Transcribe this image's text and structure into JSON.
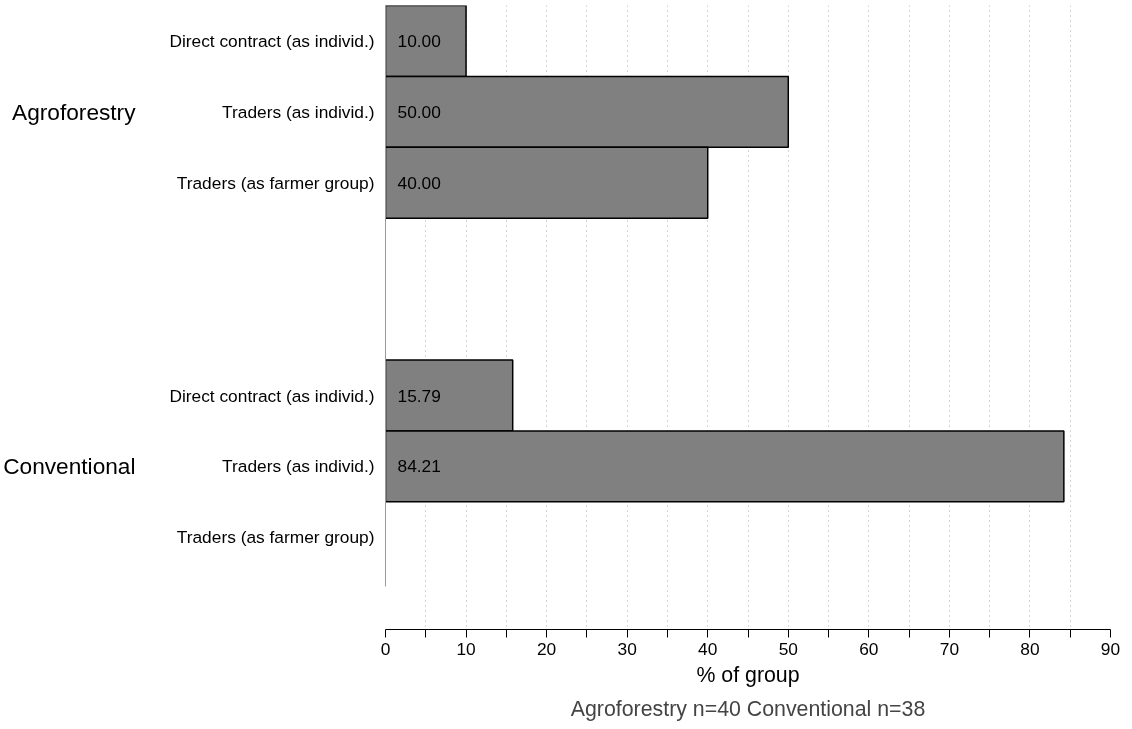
{
  "chart_data": {
    "type": "bar",
    "orientation": "horizontal",
    "categories": [
      "Direct contract (as individ.)",
      "Traders (as individ.)",
      "Traders (as farmer group)",
      null,
      null,
      "Direct contract (as individ.)",
      "Traders (as individ.)",
      "Traders (as farmer group)"
    ],
    "values": [
      10,
      50,
      40,
      null,
      null,
      15.79,
      84.21,
      null
    ],
    "value_labels": [
      "10.00",
      "50.00",
      "40.00",
      null,
      null,
      "15.79",
      "84.21",
      null
    ],
    "color": "#808080",
    "xlabel": "% of group",
    "xlim": [
      0,
      90
    ],
    "xticks": [
      0,
      {
        "value": 5,
        "label": null
      },
      10,
      {
        "value": 15,
        "label": null
      },
      20,
      {
        "value": 25,
        "label": null
      },
      30,
      {
        "value": 35,
        "label": null
      },
      40,
      {
        "value": 45,
        "label": null
      },
      50,
      {
        "value": 55,
        "label": null
      },
      60,
      {
        "value": 65,
        "label": null
      },
      70,
      {
        "value": 75,
        "label": null
      },
      80,
      {
        "value": 85,
        "label": null
      },
      90
    ],
    "grid": "x",
    "annotations": [
      "Agroforestry",
      "Conventional",
      "Agroforestry n=40 Conventional n=38"
    ]
  }
}
